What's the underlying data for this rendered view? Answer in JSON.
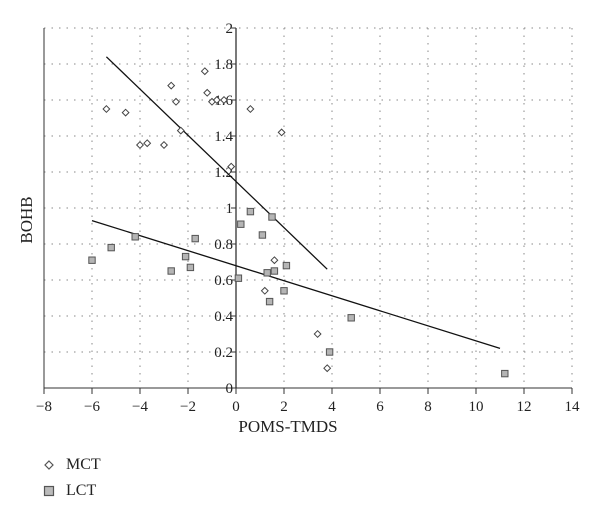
{
  "chart_data": {
    "type": "scatter",
    "xlabel": "POMS-TMDS",
    "ylabel": "BOHB",
    "xlim": [
      -8,
      14
    ],
    "ylim": [
      0,
      2
    ],
    "x_ticks": [
      "−8",
      "−6",
      "−4",
      "−2",
      "0",
      "2",
      "4",
      "6",
      "8",
      "10",
      "12",
      "14"
    ],
    "y_ticks": [
      "0",
      "0.2",
      "0.4",
      "0.6",
      "0.8",
      "1",
      "1.2",
      "1.4",
      "1.6",
      "1.8",
      "2"
    ],
    "grid": true,
    "legend_position": "bottom-left",
    "series": [
      {
        "name": "MCT",
        "marker": "diamond",
        "color": "#555555",
        "points": [
          [
            -5.4,
            1.55
          ],
          [
            -4.6,
            1.53
          ],
          [
            -4.0,
            1.35
          ],
          [
            -3.7,
            1.36
          ],
          [
            -3.0,
            1.35
          ],
          [
            -2.7,
            1.68
          ],
          [
            -2.5,
            1.59
          ],
          [
            -2.3,
            1.43
          ],
          [
            -1.3,
            1.76
          ],
          [
            -1.2,
            1.64
          ],
          [
            -1.0,
            1.59
          ],
          [
            -0.8,
            1.6
          ],
          [
            -0.5,
            1.6
          ],
          [
            -0.2,
            1.23
          ],
          [
            0.6,
            1.55
          ],
          [
            1.9,
            1.42
          ],
          [
            1.2,
            0.54
          ],
          [
            1.6,
            0.71
          ],
          [
            3.4,
            0.3
          ],
          [
            3.8,
            0.11
          ]
        ],
        "trendline": [
          [
            -5.4,
            1.84
          ],
          [
            3.8,
            0.66
          ]
        ]
      },
      {
        "name": "LCT",
        "marker": "square",
        "color": "#999999",
        "points": [
          [
            -6.0,
            0.71
          ],
          [
            -5.2,
            0.78
          ],
          [
            -4.2,
            0.84
          ],
          [
            -2.7,
            0.65
          ],
          [
            -2.1,
            0.73
          ],
          [
            -1.9,
            0.67
          ],
          [
            -1.7,
            0.83
          ],
          [
            0.1,
            0.61
          ],
          [
            0.2,
            0.91
          ],
          [
            0.6,
            0.98
          ],
          [
            1.1,
            0.85
          ],
          [
            1.3,
            0.64
          ],
          [
            1.4,
            0.48
          ],
          [
            1.5,
            0.95
          ],
          [
            1.6,
            0.65
          ],
          [
            2.0,
            0.54
          ],
          [
            2.1,
            0.68
          ],
          [
            3.9,
            0.2
          ],
          [
            4.8,
            0.39
          ],
          [
            11.2,
            0.08
          ]
        ],
        "trendline": [
          [
            -6.0,
            0.93
          ],
          [
            11.0,
            0.22
          ]
        ]
      }
    ]
  }
}
